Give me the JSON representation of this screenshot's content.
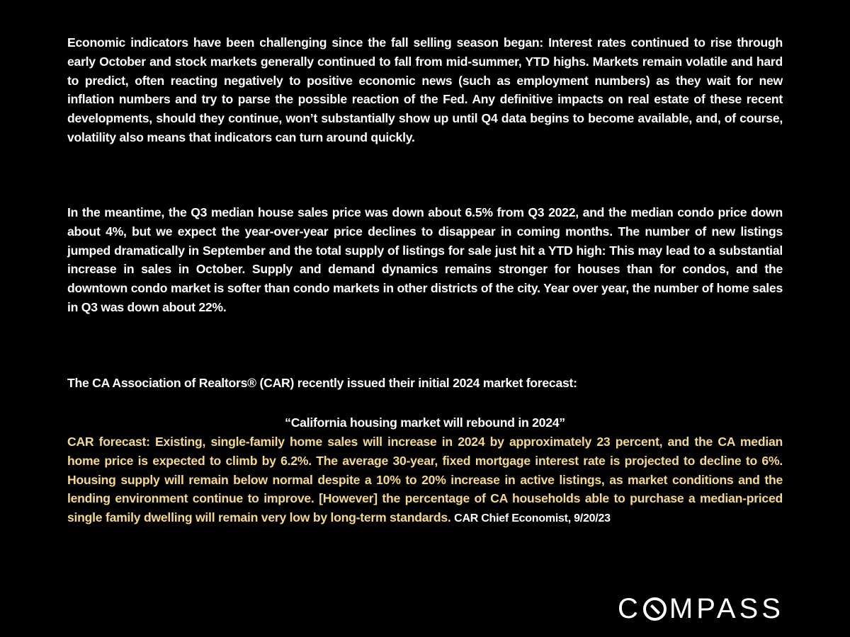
{
  "paragraphs": {
    "p1": "Economic indicators have been challenging since the fall selling season began: Interest rates continued to rise through early October and stock markets generally continued to fall from mid-summer, YTD highs. Markets remain volatile and hard to predict, often reacting negatively to positive economic news (such as employment numbers) as they wait for new inflation numbers and try to parse the possible reaction of the Fed. Any definitive impacts on real estate of these recent developments, should they continue, won’t substantially show up until Q4 data begins to become available, and, of course, volatility also means that indicators can turn around quickly.",
    "p2": "In the meantime, the Q3 median house sales price was down about 6.5% from Q3 2022, and the median condo price down about 4%, but we expect the year-over-year price declines to disappear in coming months. The number of new listings jumped dramatically in September and the total supply of listings for sale just hit a YTD high: This may lead to a substantial increase in sales in October. Supply and demand dynamics remains stronger for houses than for condos, and the downtown condo market is softer than condo markets in other districts of the city. Year over year, the number of home sales in Q3 was down about 22%.",
    "p3": "The CA Association of Realtors® (CAR) recently issued their initial 2024 market forecast:",
    "quote": "“California housing market will rebound in 2024”",
    "p4": "CAR forecast:  Existing, single-family home sales will increase in 2024 by approximately 23 percent, and the CA median home price is expected to climb by 6.2%. The average 30-year, fixed mortgage interest rate is projected to decline to 6%. Housing supply will remain below normal despite a 10% to 20% increase in active listings, as market conditions and the lending environment continue to improve. [However] the percentage of CA households able to purchase a median-priced single family dwelling will remain very low by long-term standards.",
    "attribution": "CAR Chief Economist, 9/20/23"
  },
  "logo": {
    "text": "COMPASS",
    "c": "C",
    "rest": "MPASS"
  },
  "colors": {
    "background": "#000000",
    "text": "#ffffff",
    "highlight": "#f5d98a"
  }
}
